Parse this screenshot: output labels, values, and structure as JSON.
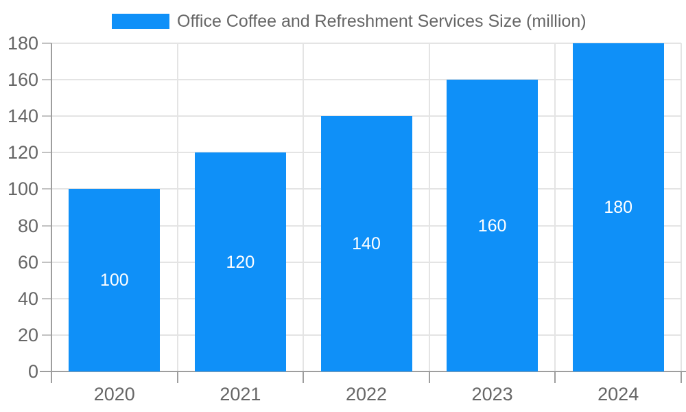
{
  "legend": {
    "label": "Office Coffee and Refreshment Services Size (million)"
  },
  "chart_data": {
    "type": "bar",
    "title": "Office Coffee and Refreshment Services Size (million)",
    "categories": [
      "2020",
      "2021",
      "2022",
      "2023",
      "2024"
    ],
    "values": [
      100,
      120,
      140,
      160,
      180
    ],
    "series": [
      {
        "name": "Office Coffee and Refreshment Services Size (million)",
        "values": [
          100,
          120,
          140,
          160,
          180
        ]
      }
    ],
    "bar_value_labels": [
      "100",
      "120",
      "140",
      "160",
      "180"
    ],
    "xlabel": "",
    "ylabel": "",
    "ylim": [
      0,
      180
    ],
    "ytick_step": 20,
    "ytick_labels": [
      "0",
      "20",
      "40",
      "60",
      "80",
      "100",
      "120",
      "140",
      "160",
      "180"
    ],
    "grid": true,
    "legend_position": "top-center",
    "value_label_position": "inside-center"
  },
  "colors": {
    "bar": "#0f90f8",
    "bar_label_text": "#ffffff",
    "axis_text": "#666666",
    "legend_text": "#666666",
    "axis_line": "#9e9e9e",
    "gridline": "#e4e4e4",
    "tick": "#c2c2c2",
    "background": "#ffffff"
  }
}
